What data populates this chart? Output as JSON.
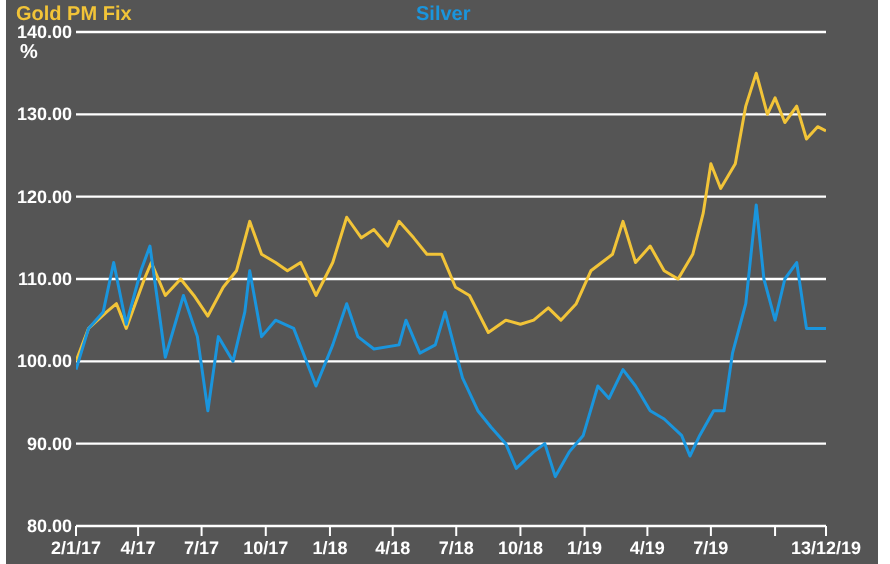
{
  "chart_data": {
    "type": "line",
    "ylabel": "%",
    "xlim": [
      "2017-01-02",
      "2019-12-13"
    ],
    "xticks": [
      {
        "value": "2017-01-02",
        "label": "2/1/17"
      },
      {
        "value": "2017-04-01",
        "label": "4/17"
      },
      {
        "value": "2017-07-01",
        "label": "7/17"
      },
      {
        "value": "2017-10-01",
        "label": "10/17"
      },
      {
        "value": "2018-01-01",
        "label": "1/18"
      },
      {
        "value": "2018-04-01",
        "label": "4/18"
      },
      {
        "value": "2018-07-01",
        "label": "7/18"
      },
      {
        "value": "2018-10-01",
        "label": "10/18"
      },
      {
        "value": "2019-01-01",
        "label": "1/19"
      },
      {
        "value": "2019-04-01",
        "label": "4/19"
      },
      {
        "value": "2019-07-01",
        "label": "7/19"
      },
      {
        "value": "2019-10-01",
        "label": null
      },
      {
        "value": "2019-12-13",
        "label": "13/12/19"
      }
    ],
    "ylim": [
      80,
      140
    ],
    "yticks": [
      {
        "value": 80,
        "label": "80.00"
      },
      {
        "value": 90,
        "label": "90.00"
      },
      {
        "value": 100,
        "label": "100.00"
      },
      {
        "value": 110,
        "label": "110.00"
      },
      {
        "value": 120,
        "label": "120.00"
      },
      {
        "value": 130,
        "label": "130.00"
      },
      {
        "value": 140,
        "label": "140.00"
      }
    ],
    "grid": "y",
    "legend": "top",
    "marker": "none",
    "line_style": "solid",
    "series": [
      {
        "name": "Gold PM Fix",
        "color": "#f2c438",
        "x": [
          "2017-01-02",
          "2017-01-20",
          "2017-02-15",
          "2017-03-01",
          "2017-03-15",
          "2017-04-10",
          "2017-04-20",
          "2017-05-10",
          "2017-06-01",
          "2017-06-20",
          "2017-07-10",
          "2017-08-01",
          "2017-08-20",
          "2017-09-08",
          "2017-09-25",
          "2017-10-15",
          "2017-11-01",
          "2017-11-20",
          "2017-12-12",
          "2018-01-05",
          "2018-01-25",
          "2018-02-15",
          "2018-03-05",
          "2018-03-25",
          "2018-04-10",
          "2018-05-01",
          "2018-05-20",
          "2018-06-10",
          "2018-06-30",
          "2018-07-20",
          "2018-08-16",
          "2018-09-10",
          "2018-10-01",
          "2018-10-20",
          "2018-11-10",
          "2018-11-28",
          "2018-12-20",
          "2019-01-10",
          "2019-02-10",
          "2019-02-25",
          "2019-03-15",
          "2019-04-05",
          "2019-04-25",
          "2019-05-15",
          "2019-06-05",
          "2019-06-20",
          "2019-07-01",
          "2019-07-15",
          "2019-08-05",
          "2019-08-20",
          "2019-09-04",
          "2019-09-20",
          "2019-10-01",
          "2019-10-15",
          "2019-11-01",
          "2019-11-15",
          "2019-12-01",
          "2019-12-13"
        ],
        "values": [
          100,
          104,
          106,
          107,
          104,
          110,
          112,
          108,
          110,
          108,
          105.5,
          109,
          111,
          117,
          113,
          112,
          111,
          112,
          108,
          112,
          117.5,
          115,
          116,
          114,
          117,
          115,
          113,
          113,
          109,
          108,
          103.5,
          105,
          104.5,
          105,
          106.5,
          105,
          107,
          111,
          113,
          117,
          112,
          114,
          111,
          110,
          113,
          118,
          124,
          121,
          124,
          131,
          135,
          130,
          132,
          129,
          131,
          127,
          128.5,
          128
        ]
      },
      {
        "name": "Silver",
        "color": "#1a95dd",
        "x": [
          "2017-01-02",
          "2017-01-20",
          "2017-02-10",
          "2017-02-25",
          "2017-03-15",
          "2017-04-05",
          "2017-04-18",
          "2017-05-10",
          "2017-06-05",
          "2017-06-25",
          "2017-07-10",
          "2017-07-25",
          "2017-08-15",
          "2017-09-01",
          "2017-09-08",
          "2017-09-25",
          "2017-10-15",
          "2017-11-10",
          "2017-12-12",
          "2018-01-05",
          "2018-01-25",
          "2018-02-10",
          "2018-03-05",
          "2018-04-10",
          "2018-04-20",
          "2018-05-10",
          "2018-06-01",
          "2018-06-15",
          "2018-07-10",
          "2018-08-01",
          "2018-08-20",
          "2018-09-10",
          "2018-09-25",
          "2018-10-20",
          "2018-11-05",
          "2018-11-20",
          "2018-12-10",
          "2018-12-30",
          "2019-01-20",
          "2019-02-05",
          "2019-02-25",
          "2019-03-15",
          "2019-04-05",
          "2019-04-25",
          "2019-05-20",
          "2019-06-01",
          "2019-06-15",
          "2019-07-05",
          "2019-07-20",
          "2019-08-01",
          "2019-08-20",
          "2019-09-04",
          "2019-09-15",
          "2019-10-01",
          "2019-10-15",
          "2019-11-01",
          "2019-11-15",
          "2019-12-01",
          "2019-12-13"
        ],
        "values": [
          99,
          104,
          106,
          112,
          104.5,
          111,
          114,
          100.5,
          108,
          103,
          94,
          103,
          100,
          106,
          111,
          103,
          105,
          104,
          97,
          102,
          107,
          103,
          101.5,
          102,
          105,
          101,
          102,
          106,
          98,
          94,
          92,
          90,
          87,
          89,
          90,
          86,
          89,
          91,
          97,
          95.5,
          99,
          97,
          94,
          93,
          91,
          88.5,
          91,
          94,
          94,
          101,
          107,
          119,
          110,
          105,
          110,
          112,
          104,
          104,
          104
        ]
      }
    ]
  }
}
